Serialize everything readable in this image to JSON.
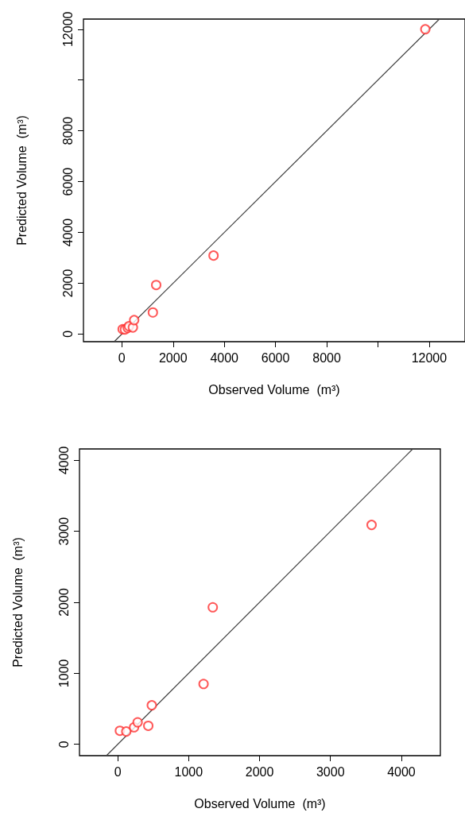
{
  "chart_data": [
    {
      "type": "scatter",
      "xlabel": "Observed Volume  (m³)",
      "ylabel": "Predicted Volume  (m³)",
      "grid": false,
      "xlim": [
        -1500,
        13400
      ],
      "ylim": [
        -300,
        12400
      ],
      "xticks": [
        0,
        2000,
        4000,
        6000,
        8000,
        {
          "value": 10000,
          "label": null
        },
        12000
      ],
      "yticks": [
        0,
        2000,
        4000,
        6000,
        8000,
        {
          "value": 10000,
          "label": null
        },
        12000
      ],
      "series": [
        {
          "type": "scatter",
          "marker": "circle",
          "color": "#ff3030",
          "x": [
            30,
            120,
            230,
            280,
            430,
            480,
            1210,
            1340,
            3580,
            11850
          ],
          "values": [
            190,
            180,
            240,
            310,
            260,
            550,
            850,
            1930,
            3090,
            12000
          ]
        },
        {
          "type": "line",
          "marker": "none",
          "color": "#404040",
          "x": [
            -300,
            12400
          ],
          "values": [
            -300,
            12400
          ]
        }
      ]
    },
    {
      "type": "scatter",
      "xlabel": "Observed Volume  (m³)",
      "ylabel": "Predicted Volume  (m³)",
      "grid": false,
      "xlim": [
        -540,
        4550
      ],
      "ylim": [
        -160,
        4160
      ],
      "xticks": [
        0,
        1000,
        2000,
        3000,
        4000
      ],
      "yticks": [
        0,
        1000,
        2000,
        3000,
        4000
      ],
      "series": [
        {
          "type": "scatter",
          "marker": "circle",
          "color": "#ff3030",
          "x": [
            30,
            120,
            230,
            280,
            430,
            480,
            1210,
            1340,
            3580
          ],
          "values": [
            190,
            180,
            240,
            310,
            260,
            550,
            850,
            1930,
            3090
          ]
        },
        {
          "type": "line",
          "marker": "none",
          "color": "#404040",
          "x": [
            -160,
            4160
          ],
          "values": [
            -160,
            4160
          ]
        }
      ]
    }
  ]
}
